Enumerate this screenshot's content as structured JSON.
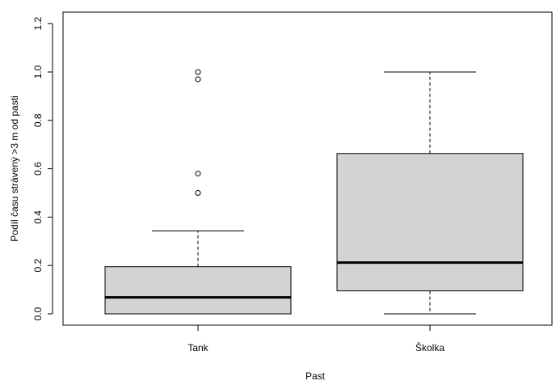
{
  "chart_data": {
    "type": "boxplot",
    "xlabel": "Past",
    "ylabel": "Podíl času strávený >3 m od pasti",
    "ylim": [
      -0.05,
      1.25
    ],
    "yticks": [
      "0.0",
      "0.2",
      "0.4",
      "0.6",
      "0.8",
      "1.0",
      "1.2"
    ],
    "ytick_values": [
      0.0,
      0.2,
      0.4,
      0.6,
      0.8,
      1.0,
      1.2
    ],
    "grid": false,
    "box_fill": "#d3d3d3",
    "categories": [
      "Tank",
      "Školka"
    ],
    "boxes": [
      {
        "category": "Tank",
        "whisker_low": 0.0,
        "q1": 0.0,
        "median": 0.068,
        "q3": 0.195,
        "whisker_high": 0.343,
        "outliers": [
          0.5,
          0.58,
          0.97,
          1.0
        ]
      },
      {
        "category": "Školka",
        "whisker_low": 0.0,
        "q1": 0.095,
        "median": 0.212,
        "q3": 0.663,
        "whisker_high": 1.0,
        "outliers": []
      }
    ]
  }
}
